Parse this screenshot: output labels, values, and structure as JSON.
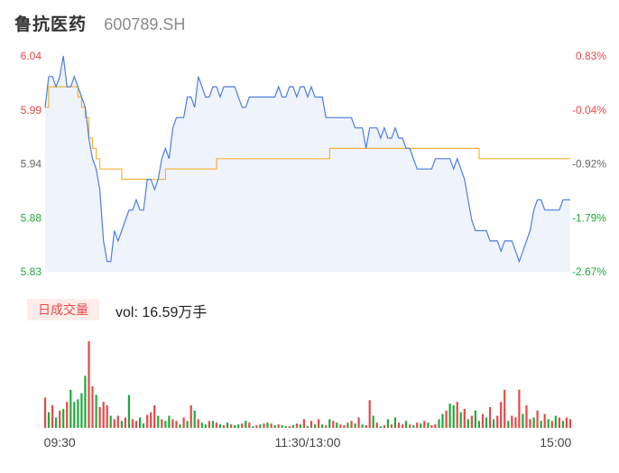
{
  "header": {
    "name": "鲁抗医药",
    "code": "600789.SH"
  },
  "volume_panel": {
    "badge": "日成交量",
    "vol_label": "vol: 16.59万手"
  },
  "colors": {
    "price_line": "#4e7ee0",
    "avg_line": "#f5b335",
    "area_fill": "#eef3fc",
    "up": "#e84848",
    "down": "#1fab3b",
    "axis_text": "#444444"
  },
  "chart_data": [
    {
      "type": "line",
      "title": "",
      "y_ticks_left": [
        "6.04",
        "5.99",
        "5.94",
        "5.88",
        "5.83"
      ],
      "y_ticks_right": [
        "0.83%",
        "-0.04%",
        "-0.92%",
        "-1.79%",
        "-2.67%"
      ],
      "y_tick_colors": [
        "#e84848",
        "#e84848",
        "#666666",
        "#1fab3b",
        "#1fab3b"
      ],
      "ylim": [
        5.83,
        6.04
      ],
      "series": [
        {
          "key": "price",
          "values": [
            5.99,
            6.02,
            6.02,
            6.01,
            6.02,
            6.04,
            6.01,
            6.01,
            6.02,
            6.01,
            6.0,
            5.99,
            5.96,
            5.94,
            5.93,
            5.91,
            5.86,
            5.84,
            5.84,
            5.87,
            5.86,
            5.87,
            5.88,
            5.89,
            5.89,
            5.9,
            5.89,
            5.89,
            5.92,
            5.92,
            5.91,
            5.92,
            5.94,
            5.95,
            5.94,
            5.97,
            5.98,
            5.98,
            5.98,
            6.0,
            6.0,
            5.99,
            6.02,
            6.01,
            6.0,
            6.0,
            6.01,
            6.01,
            6.0,
            6.01,
            6.01,
            6.01,
            6.01,
            6.0,
            5.99,
            5.99,
            6.0,
            6.0,
            6.0,
            6.0,
            6.0,
            6.0,
            6.0,
            6.0,
            6.01,
            6.0,
            6.0,
            6.01,
            6.01,
            6.0,
            6.01,
            6.01,
            6.0,
            6.01,
            6.0,
            6.0,
            6.0,
            5.98,
            5.98,
            5.98,
            5.98,
            5.98,
            5.98,
            5.98,
            5.98,
            5.97,
            5.97,
            5.97,
            5.95,
            5.97,
            5.97,
            5.97,
            5.96,
            5.97,
            5.96,
            5.96,
            5.97,
            5.96,
            5.96,
            5.95,
            5.95,
            5.94,
            5.93,
            5.93,
            5.93,
            5.93,
            5.93,
            5.94,
            5.94,
            5.94,
            5.94,
            5.94,
            5.93,
            5.94,
            5.93,
            5.92,
            5.9,
            5.88,
            5.87,
            5.87,
            5.87,
            5.87,
            5.86,
            5.86,
            5.86,
            5.85,
            5.86,
            5.86,
            5.86,
            5.85,
            5.84,
            5.85,
            5.86,
            5.87,
            5.89,
            5.9,
            5.9,
            5.89,
            5.89,
            5.89,
            5.89,
            5.89,
            5.9,
            5.9,
            5.9
          ]
        },
        {
          "key": "average",
          "values": [
            5.99,
            6.01,
            6.01,
            6.01,
            6.01,
            6.01,
            6.01,
            6.01,
            6.01,
            6.0,
            5.99,
            5.98,
            5.96,
            5.95,
            5.94,
            5.93,
            5.93,
            5.93,
            5.93,
            5.93,
            5.93,
            5.92,
            5.92,
            5.92,
            5.92,
            5.92,
            5.92,
            5.92,
            5.92,
            5.92,
            5.92,
            5.92,
            5.92,
            5.93,
            5.93,
            5.93,
            5.93,
            5.93,
            5.93,
            5.93,
            5.93,
            5.93,
            5.93,
            5.93,
            5.93,
            5.93,
            5.93,
            5.94,
            5.94,
            5.94,
            5.94,
            5.94,
            5.94,
            5.94,
            5.94,
            5.94,
            5.94,
            5.94,
            5.94,
            5.94,
            5.94,
            5.94,
            5.94,
            5.94,
            5.94,
            5.94,
            5.94,
            5.94,
            5.94,
            5.94,
            5.94,
            5.94,
            5.94,
            5.94,
            5.94,
            5.94,
            5.94,
            5.94,
            5.95,
            5.95,
            5.95,
            5.95,
            5.95,
            5.95,
            5.95,
            5.95,
            5.95,
            5.95,
            5.95,
            5.95,
            5.95,
            5.95,
            5.95,
            5.95,
            5.95,
            5.95,
            5.95,
            5.95,
            5.95,
            5.95,
            5.95,
            5.95,
            5.95,
            5.95,
            5.95,
            5.95,
            5.95,
            5.95,
            5.95,
            5.95,
            5.95,
            5.95,
            5.95,
            5.95,
            5.95,
            5.95,
            5.95,
            5.95,
            5.95,
            5.94,
            5.94,
            5.94,
            5.94,
            5.94,
            5.94,
            5.94,
            5.94,
            5.94,
            5.94,
            5.94,
            5.94,
            5.94,
            5.94,
            5.94,
            5.94,
            5.94,
            5.94,
            5.94,
            5.94,
            5.94,
            5.94,
            5.94,
            5.94,
            5.94,
            5.94
          ]
        }
      ]
    },
    {
      "type": "bar",
      "title": "",
      "x_ticks": [
        {
          "index": 4,
          "label": "09:30"
        },
        {
          "index": 72,
          "label": "11:30/13:00"
        },
        {
          "index": 140,
          "label": "15:00"
        }
      ],
      "unit_note": "relative volume, 0-100",
      "values": [
        35,
        18,
        26,
        12,
        20,
        22,
        30,
        44,
        30,
        33,
        40,
        60,
        100,
        48,
        38,
        24,
        30,
        26,
        14,
        10,
        14,
        8,
        12,
        38,
        10,
        8,
        12,
        5,
        15,
        18,
        26,
        14,
        10,
        8,
        14,
        10,
        8,
        4,
        12,
        8,
        26,
        20,
        10,
        6,
        4,
        8,
        8,
        6,
        4,
        3,
        6,
        4,
        3,
        4,
        5,
        8,
        6,
        2,
        3,
        4,
        5,
        6,
        5,
        3,
        4,
        3,
        2,
        2,
        3,
        5,
        4,
        10,
        2,
        8,
        4,
        10,
        4,
        3,
        10,
        8,
        6,
        4,
        3,
        6,
        8,
        5,
        12,
        4,
        3,
        32,
        14,
        6,
        2,
        3,
        10,
        4,
        12,
        6,
        4,
        8,
        4,
        3,
        6,
        5,
        8,
        6,
        3,
        4,
        10,
        16,
        20,
        28,
        26,
        30,
        18,
        22,
        10,
        14,
        20,
        8,
        16,
        12,
        24,
        10,
        14,
        30,
        44,
        8,
        14,
        12,
        44,
        16,
        26,
        10,
        12,
        20,
        8,
        16,
        10,
        8,
        14,
        12,
        8,
        12,
        10
      ],
      "directions": [
        "u",
        "d",
        "u",
        "d",
        "u",
        "d",
        "u",
        "d",
        "d",
        "d",
        "d",
        "d",
        "u",
        "u",
        "d",
        "u",
        "u",
        "u",
        "d",
        "u",
        "u",
        "d",
        "u",
        "d",
        "u",
        "u",
        "d",
        "d",
        "u",
        "u",
        "u",
        "d",
        "u",
        "d",
        "d",
        "u",
        "u",
        "d",
        "u",
        "d",
        "u",
        "d",
        "u",
        "d",
        "d",
        "u",
        "d",
        "u",
        "d",
        "u",
        "d",
        "u",
        "d",
        "d",
        "u",
        "d",
        "u",
        "d",
        "u",
        "d",
        "u",
        "d",
        "u",
        "d",
        "u",
        "d",
        "d",
        "u",
        "d",
        "u",
        "d",
        "u",
        "d",
        "u",
        "d",
        "u",
        "d",
        "u",
        "d",
        "u",
        "d",
        "u",
        "u",
        "d",
        "u",
        "d",
        "u",
        "d",
        "u",
        "u",
        "d",
        "u",
        "d",
        "u",
        "d",
        "u",
        "d",
        "u",
        "u",
        "d",
        "u",
        "d",
        "u",
        "d",
        "u",
        "d",
        "u",
        "u",
        "d",
        "d",
        "u",
        "d",
        "d",
        "u",
        "d",
        "u",
        "d",
        "u",
        "d",
        "d",
        "u",
        "d",
        "u",
        "d",
        "u",
        "u",
        "u",
        "d",
        "u",
        "u",
        "u",
        "d",
        "u",
        "u",
        "d",
        "u",
        "d",
        "u",
        "d",
        "u",
        "d",
        "u",
        "d",
        "u",
        "u"
      ]
    }
  ]
}
